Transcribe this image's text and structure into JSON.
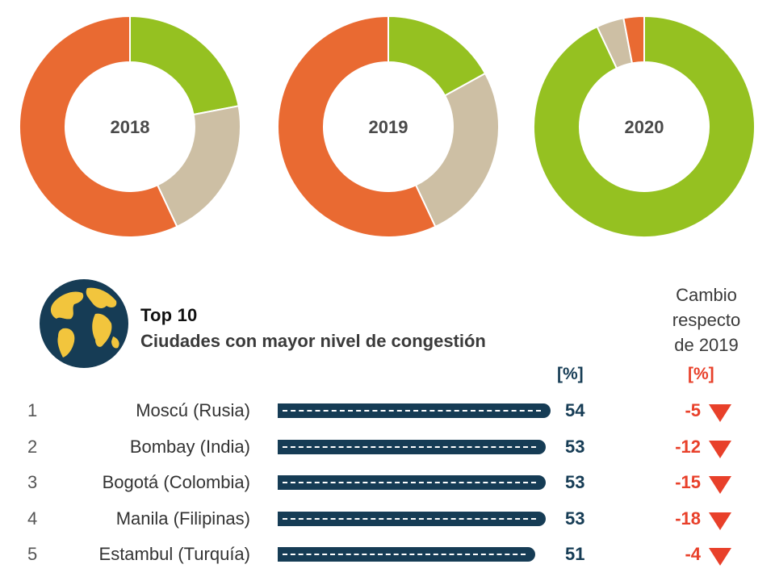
{
  "chart_data": [
    {
      "type": "pie",
      "title": "2018",
      "colors": [
        "#95c121",
        "#cdbfa4",
        "#e96a32"
      ],
      "values": [
        22,
        21,
        57
      ]
    },
    {
      "type": "pie",
      "title": "2019",
      "colors": [
        "#95c121",
        "#cdbfa4",
        "#e96a32"
      ],
      "values": [
        17,
        26,
        57
      ]
    },
    {
      "type": "pie",
      "title": "2020",
      "colors": [
        "#95c121",
        "#cdbfa4",
        "#e96a32"
      ],
      "values": [
        93,
        4,
        3
      ]
    },
    {
      "type": "bar",
      "title": "Top 10",
      "subtitle": "Ciudades con mayor nivel de congestión",
      "unit": "[%]",
      "categories": [
        "Moscú (Rusia)",
        "Bombay (India)",
        "Bogotá (Colombia)",
        "Manila (Filipinas)",
        "Estambul (Turquía)"
      ],
      "values": [
        54,
        53,
        53,
        53,
        51
      ],
      "change_title": "Cambio respecto de 2019",
      "change_unit": "[%]",
      "change": [
        -5,
        -12,
        -15,
        -18,
        -4
      ]
    }
  ],
  "header": {
    "title_top": "Top 10",
    "title_sub": "Ciudades con mayor nivel de congestión",
    "cambio_lines": [
      "Cambio",
      "respecto",
      "de 2019"
    ],
    "unit_left": "[%]",
    "unit_right": "[%]"
  },
  "rows": [
    {
      "rank": "1",
      "city": "Moscú (Rusia)",
      "value": "54",
      "change": "-5"
    },
    {
      "rank": "2",
      "city": "Bombay (India)",
      "value": "53",
      "change": "-12"
    },
    {
      "rank": "3",
      "city": "Bogotá (Colombia)",
      "value": "53",
      "change": "-15"
    },
    {
      "rank": "4",
      "city": "Manila (Filipinas)",
      "value": "53",
      "change": "-18"
    },
    {
      "rank": "5",
      "city": "Estambul (Turquía)",
      "value": "51",
      "change": "-4"
    }
  ],
  "colors": {
    "navy": "#163c55",
    "red": "#e8402a",
    "green": "#95c121",
    "beige": "#cdbfa4",
    "orange": "#e96a32",
    "globe_yellow": "#f2c53d"
  }
}
